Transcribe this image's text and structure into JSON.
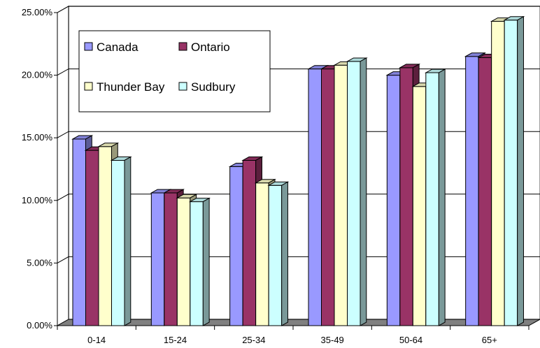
{
  "chart_data": {
    "type": "bar",
    "categories": [
      "0-14",
      "15-24",
      "25-34",
      "35-49",
      "50-64",
      "65+"
    ],
    "series": [
      {
        "name": "Canada",
        "color": "#9999ff",
        "values": [
          14.9,
          10.6,
          12.7,
          20.5,
          20.0,
          21.5
        ]
      },
      {
        "name": "Ontario",
        "color": "#993366",
        "values": [
          14.0,
          10.6,
          13.2,
          20.5,
          20.6,
          21.4
        ]
      },
      {
        "name": "Thunder Bay",
        "color": "#ffffcc",
        "values": [
          14.3,
          10.2,
          11.4,
          20.8,
          19.1,
          24.3
        ]
      },
      {
        "name": "Sudbury",
        "color": "#ccffff",
        "values": [
          13.2,
          9.9,
          11.2,
          21.1,
          20.2,
          24.4
        ]
      }
    ],
    "ylim": [
      0,
      25
    ],
    "yticks": [
      "0.00%",
      "5.00%",
      "10.00%",
      "15.00%",
      "20.00%",
      "25.00%"
    ],
    "grid": true,
    "legend_position": "top-left-inside"
  }
}
